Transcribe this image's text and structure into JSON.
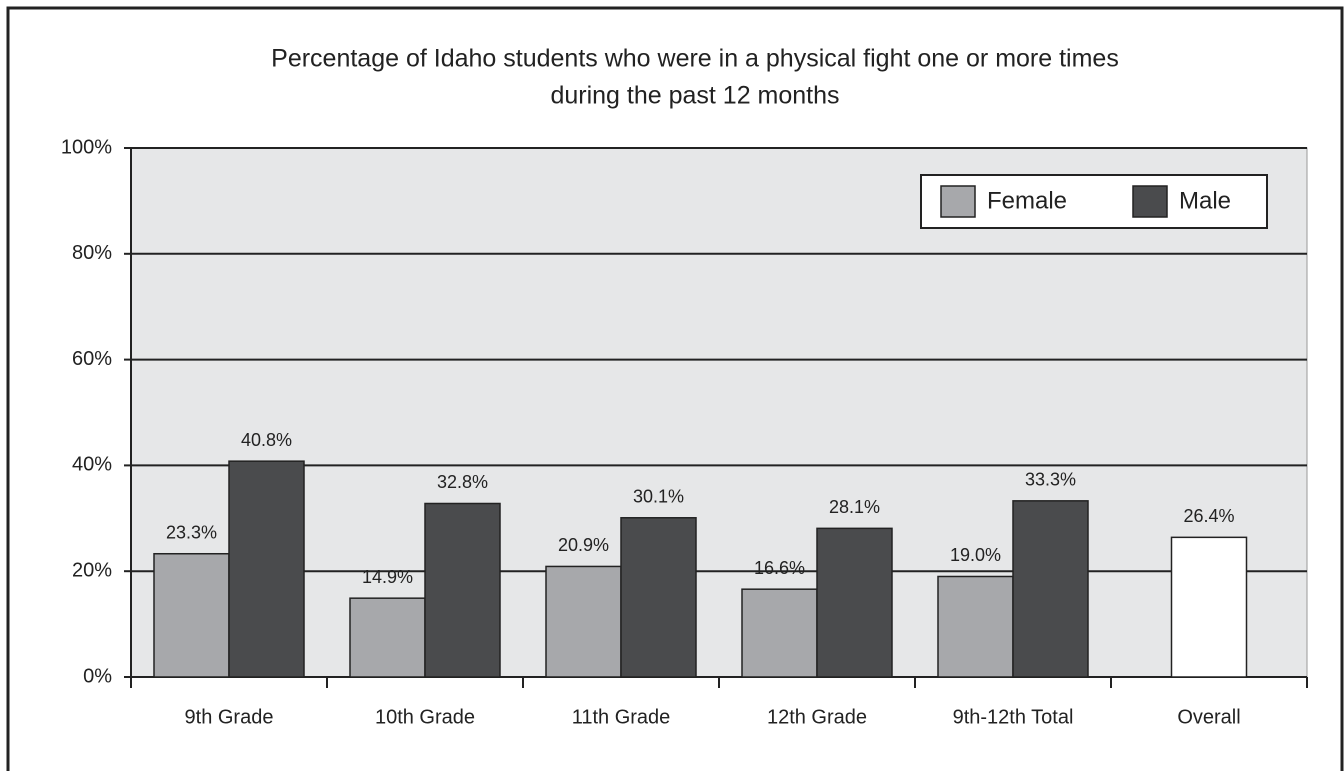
{
  "chart_data": {
    "type": "bar",
    "title": [
      "Percentage of Idaho students who were in a physical fight one or more times",
      "during the past 12 months"
    ],
    "categories": [
      "9th Grade",
      "10th Grade",
      "11th Grade",
      "12th Grade",
      "9th-12th Total",
      "Overall"
    ],
    "series": [
      {
        "name": "Female",
        "color": "#a7a8ab",
        "values": [
          23.3,
          14.9,
          20.9,
          16.6,
          19.0,
          null
        ],
        "value_labels": [
          "23.3%",
          "14.9%",
          "20.9%",
          "16.6%",
          "19.0%",
          null
        ]
      },
      {
        "name": "Male",
        "color": "#4a4b4d",
        "values": [
          40.8,
          32.8,
          30.1,
          28.1,
          33.3,
          null
        ],
        "value_labels": [
          "40.8%",
          "32.8%",
          "30.1%",
          "28.1%",
          "33.3%",
          null
        ]
      },
      {
        "color": "#ffffff",
        "values": [
          null,
          null,
          null,
          null,
          null,
          26.4
        ],
        "value_labels": [
          null,
          null,
          null,
          null,
          null,
          "26.4%"
        ]
      }
    ],
    "ylim": [
      0,
      100
    ],
    "yticks": [
      {
        "value": 0,
        "label": "0%"
      },
      {
        "value": 20,
        "label": "20%"
      },
      {
        "value": 40,
        "label": "40%"
      },
      {
        "value": 60,
        "label": "60%"
      },
      {
        "value": 80,
        "label": "80%"
      },
      {
        "value": 100,
        "label": "100%"
      }
    ],
    "grid": true,
    "legend": "upper right"
  }
}
